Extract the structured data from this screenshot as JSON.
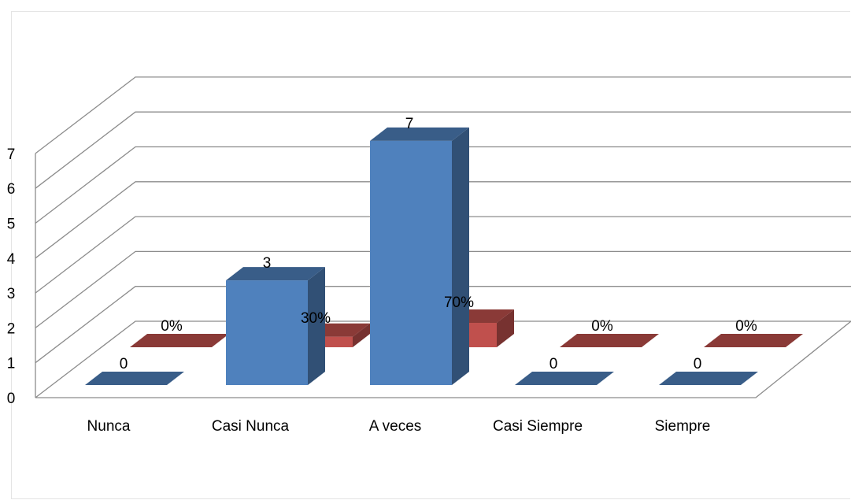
{
  "chart_data": {
    "type": "bar",
    "categories": [
      "Nunca",
      "Casi Nunca",
      "A veces",
      "Casi Siempre",
      "Siempre"
    ],
    "series": [
      {
        "values": [
          0,
          3,
          7,
          0,
          0
        ],
        "labels": [
          "0",
          "3",
          "7",
          "0",
          "0"
        ],
        "color": "#4f81bd"
      },
      {
        "values": [
          0,
          0.3,
          0.7,
          0,
          0
        ],
        "labels": [
          "0%",
          "30%",
          "70%",
          "0%",
          "0%"
        ],
        "color": "#c0504d"
      }
    ],
    "yticks": [
      "0",
      "1",
      "2",
      "3",
      "4",
      "5",
      "6",
      "7"
    ],
    "ylim": [
      0,
      7
    ],
    "grid": true,
    "projection": "3d",
    "legend": "none"
  }
}
